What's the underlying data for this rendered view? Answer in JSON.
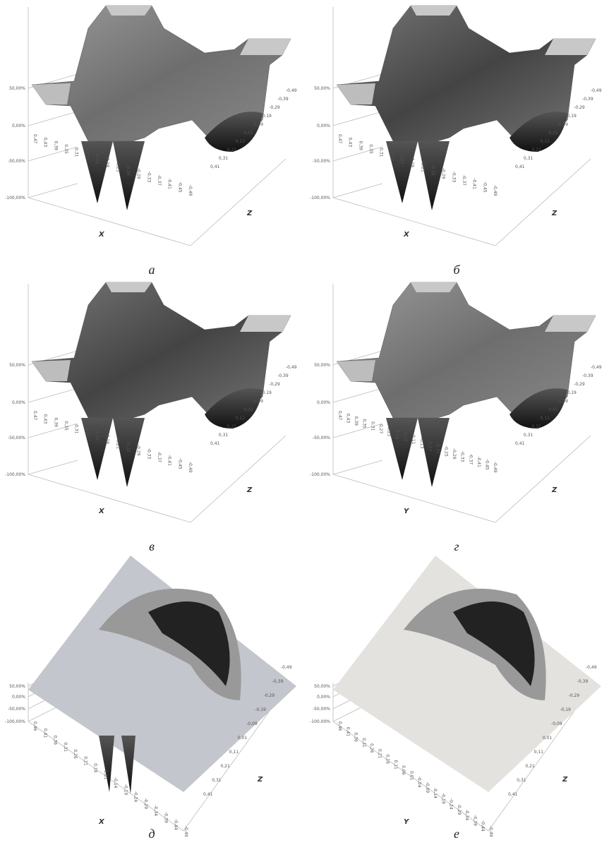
{
  "panels": [
    {
      "caption": "а",
      "x_axis": "X",
      "z_axis": "Z",
      "y_ticks": [
        "50,00%",
        "0,00%",
        "-50,00%",
        "-100,00%"
      ],
      "x_ticks": [
        "0,47",
        "0,43",
        "0,39",
        "0,35",
        "0,31",
        "0,27",
        "0,23",
        "0,19",
        "-0,21",
        "-0,25",
        "-0,29",
        "-0,33",
        "-0,37",
        "-0,41",
        "-0,45",
        "-0,49"
      ],
      "z_ticks": [
        "-0,49",
        "-0,39",
        "-0,29",
        "-0,19",
        "-0,09",
        "0,01",
        "0,11",
        "0,21",
        "0,31",
        "0,41"
      ]
    },
    {
      "caption": "б",
      "x_axis": "X",
      "z_axis": "Z",
      "y_ticks": [
        "50,00%",
        "0,00%",
        "-50,00%",
        "-100,00%"
      ],
      "x_ticks": [
        "0,47",
        "0,43",
        "0,39",
        "0,35",
        "0,31",
        "0,27",
        "0,23",
        "0,19",
        "-0,21",
        "-0,25",
        "-0,29",
        "-0,33",
        "-0,37",
        "-0,41",
        "-0,45",
        "-0,49"
      ],
      "z_ticks": [
        "-0,49",
        "-0,39",
        "-0,29",
        "-0,19",
        "-0,09",
        "0,01",
        "0,11",
        "0,21",
        "0,31",
        "0,41"
      ]
    },
    {
      "caption": "в",
      "x_axis": "X",
      "z_axis": "Z",
      "y_ticks": [
        "50,00%",
        "0,00%",
        "-50,00%",
        "-100,00%"
      ],
      "x_ticks": [
        "0,47",
        "0,43",
        "0,39",
        "0,35",
        "0,31",
        "0,27",
        "0,23",
        "0,19",
        "-0,21",
        "-0,25",
        "-0,29",
        "-0,33",
        "-0,37",
        "-0,41",
        "-0,45",
        "-0,49"
      ],
      "z_ticks": [
        "-0,49",
        "-0,39",
        "-0,29",
        "-0,19",
        "-0,09",
        "0,01",
        "0,11",
        "0,21",
        "0,31",
        "0,41"
      ]
    },
    {
      "caption": "г",
      "x_axis": "Y",
      "z_axis": "Z",
      "y_ticks": [
        "50,00%",
        "0,00%",
        "-50,00%",
        "-100,00%"
      ],
      "x_ticks": [
        "0,47",
        "0,43",
        "0,39",
        "0,35",
        "0,31",
        "0,27",
        "0,23",
        "0,19",
        "0,15",
        "0,11",
        "-0,13",
        "-0,17",
        "-0,21",
        "-0,25",
        "-0,29",
        "-0,33",
        "-0,37",
        "-0,41",
        "-0,45",
        "-0,49"
      ],
      "z_ticks": [
        "-0,49",
        "-0,39",
        "-0,29",
        "-0,19",
        "-0,09",
        "0,01",
        "0,11",
        "0,21",
        "0,31",
        "0,41"
      ]
    },
    {
      "caption": "д",
      "x_axis": "X",
      "z_axis": "Z",
      "y_ticks": [
        "50,00%",
        "0,00%",
        "-50,00%",
        "-100,00%"
      ],
      "x_ticks": [
        "0,46",
        "0,41",
        "0,36",
        "0,31",
        "0,26",
        "0,21",
        "0,16",
        "0,01",
        "-0,14",
        "-0,19",
        "-0,24",
        "-0,29",
        "-0,34",
        "-0,39",
        "-0,44",
        "-0,49"
      ],
      "z_ticks": [
        "-0,49",
        "-0,39",
        "-0,29",
        "-0,19",
        "-0,09",
        "0,01",
        "0,11",
        "0,21",
        "0,31",
        "0,41"
      ]
    },
    {
      "caption": "е",
      "x_axis": "Y",
      "z_axis": "Z",
      "y_ticks": [
        "50,00%",
        "0,00%",
        "-50,00%",
        "-100,00%"
      ],
      "x_ticks": [
        "0,46",
        "0,41",
        "0,36",
        "0,31",
        "0,26",
        "0,21",
        "0,16",
        "0,11",
        "0,06",
        "0,01",
        "-0,04",
        "-0,09",
        "-0,14",
        "-0,19",
        "-0,24",
        "-0,29",
        "-0,34",
        "-0,39",
        "-0,44",
        "-0,49"
      ],
      "z_ticks": [
        "-0,49",
        "-0,39",
        "-0,29",
        "-0,19",
        "-0,09",
        "0,01",
        "0,11",
        "0,21",
        "0,31",
        "0,41"
      ]
    }
  ]
}
